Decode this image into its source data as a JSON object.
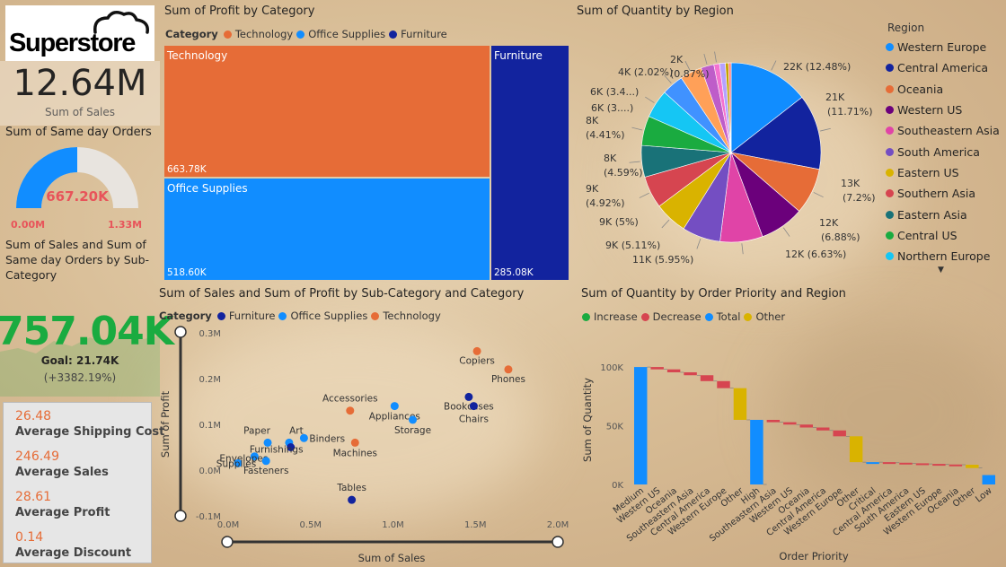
{
  "logo": {
    "text": "Superstore"
  },
  "kpi_sales": {
    "value": "12.64M",
    "label": "Sum of Sales"
  },
  "gauge": {
    "title": "Sum of Same day Orders",
    "value": "667.20K",
    "min": "0.00M",
    "max": "1.33M",
    "fraction": 0.5
  },
  "kpi_goal": {
    "title": "Sum of Sales and Sum of Same day Orders by Sub-Category",
    "value": "757.04K",
    "goal": "Goal: 21.74K",
    "delta": "(+3382.19%)"
  },
  "averages": [
    {
      "value": "26.48",
      "label": "Average Shipping Cost"
    },
    {
      "value": "246.49",
      "label": "Average Sales"
    },
    {
      "value": "28.61",
      "label": "Average Profit"
    },
    {
      "value": "0.14",
      "label": "Average Discount"
    }
  ],
  "colors": {
    "technology": "#E66C37",
    "office": "#118DFF",
    "furniture": "#12239E",
    "accent": "#E8545A"
  },
  "treemap": {
    "title": "Sum of Profit by Category",
    "legend_title": "Category",
    "legend": [
      "Technology",
      "Office Supplies",
      "Furniture"
    ],
    "tiles": [
      {
        "name": "Technology",
        "value": "663.78K"
      },
      {
        "name": "Office Supplies",
        "value": "518.60K"
      },
      {
        "name": "Furniture",
        "value": "285.08K"
      }
    ]
  },
  "pie": {
    "title": "Sum of Quantity by Region",
    "legend_title": "Region",
    "legend": [
      "Western Europe",
      "Central America",
      "Oceania",
      "Western US",
      "Southeastern Asia",
      "South America",
      "Eastern US",
      "Southern Asia",
      "Eastern Asia",
      "Central US",
      "Northern Europe"
    ],
    "labels": [
      {
        "l1": "22K (12.48%)",
        "l2": ""
      },
      {
        "l1": "21K",
        "l2": "(11.71%)"
      },
      {
        "l1": "13K",
        "l2": "(7.2%)"
      },
      {
        "l1": "12K",
        "l2": "(6.88%)"
      },
      {
        "l1": "12K (6.63%)",
        "l2": ""
      },
      {
        "l1": "11K (5.95%)",
        "l2": ""
      },
      {
        "l1": "9K (5.11%)",
        "l2": ""
      },
      {
        "l1": "9K (5%)",
        "l2": ""
      },
      {
        "l1": "9K",
        "l2": "(4.92%)"
      },
      {
        "l1": "8K",
        "l2": "(4.59%)"
      },
      {
        "l1": "8K",
        "l2": "(4.41%)"
      },
      {
        "l1": "6K (3....)",
        "l2": ""
      },
      {
        "l1": "6K (3.4...)",
        "l2": ""
      },
      {
        "l1": "4K (2.02%)",
        "l2": ""
      },
      {
        "l1": "2K",
        "l2": "(0.87%)"
      }
    ]
  },
  "scatter": {
    "title": "Sum of Sales and Sum of Profit by Sub-Category and Category",
    "legend_title": "Category",
    "legend": [
      "Furniture",
      "Office Supplies",
      "Technology"
    ],
    "xlabel": "Sum of Sales",
    "ylabel": "Sum of Profit",
    "xticks": [
      "0.0M",
      "0.5M",
      "1.0M",
      "1.5M",
      "2.0M"
    ],
    "yticks": [
      "0.3M",
      "0.2M",
      "0.1M",
      "0.0M",
      "-0.1M"
    ]
  },
  "waterfall": {
    "title": "Sum of Quantity by Order Priority and Region",
    "legend": [
      "Increase",
      "Decrease",
      "Total",
      "Other"
    ],
    "xlabel": "Order Priority",
    "ylabel": "Sum of Quantity",
    "yticks": [
      "100K",
      "50K",
      "0K"
    ],
    "categories": [
      "Medium",
      "Western US",
      "Oceania",
      "Southeastern Asia",
      "Central America",
      "Western Europe",
      "Other",
      "High",
      "Southeastern Asia",
      "Western US",
      "Oceania",
      "Central America",
      "Western Europe",
      "Other",
      "Critical",
      "Central America",
      "South America",
      "Eastern US",
      "Western Europe",
      "Oceania",
      "Other",
      "Low"
    ]
  },
  "chart_data": [
    {
      "type": "treemap",
      "title": "Sum of Profit by Category",
      "categories": [
        "Technology",
        "Office Supplies",
        "Furniture"
      ],
      "values": [
        663780,
        518600,
        285080
      ]
    },
    {
      "type": "pie",
      "title": "Sum of Quantity by Region",
      "categories": [
        "Western Europe",
        "Central America",
        "Oceania",
        "Western US",
        "Southeastern Asia",
        "South America",
        "Eastern US",
        "Southern Asia",
        "Eastern Asia",
        "Central US",
        "Northern Europe",
        "slice 12",
        "slice 13",
        "slice 14",
        "slice 15",
        "slice 16",
        "slice 17",
        "slice 18"
      ],
      "values": [
        12.48,
        11.71,
        7.2,
        6.88,
        6.63,
        5.95,
        5.11,
        5.0,
        4.92,
        4.59,
        4.41,
        3.4,
        3.4,
        2.02,
        0.87,
        0.9,
        0.5,
        0.4
      ],
      "colors": [
        "#118DFF",
        "#12239E",
        "#E66C37",
        "#6B007B",
        "#E044A7",
        "#744EC2",
        "#D9B300",
        "#D64550",
        "#197278",
        "#1AAB40",
        "#15C6F4",
        "#4092FF",
        "#FFA058",
        "#BE5DC9",
        "#F472D0",
        "#B5A1FF",
        "#C4A200",
        "#FF8080"
      ]
    },
    {
      "type": "scatter",
      "title": "Sum of Sales and Sum of Profit by Sub-Category and Category",
      "xlabel": "Sum of Sales",
      "ylabel": "Sum of Profit",
      "xlim": [
        0,
        2.0
      ],
      "ylim": [
        -0.1,
        0.3
      ],
      "points": [
        {
          "label": "Copiers",
          "cat": "Technology",
          "x": 1.51,
          "y": 0.26
        },
        {
          "label": "Phones",
          "cat": "Technology",
          "x": 1.7,
          "y": 0.22
        },
        {
          "label": "Accessories",
          "cat": "Technology",
          "x": 0.74,
          "y": 0.13
        },
        {
          "label": "Machines",
          "cat": "Technology",
          "x": 0.77,
          "y": 0.06
        },
        {
          "label": "Appliances",
          "cat": "Office Supplies",
          "x": 1.01,
          "y": 0.14
        },
        {
          "label": "Storage",
          "cat": "Office Supplies",
          "x": 1.12,
          "y": 0.11
        },
        {
          "label": "Binders",
          "cat": "Office Supplies",
          "x": 0.46,
          "y": 0.07
        },
        {
          "label": "Paper",
          "cat": "Office Supplies",
          "x": 0.24,
          "y": 0.06
        },
        {
          "label": "Art",
          "cat": "Office Supplies",
          "x": 0.37,
          "y": 0.06
        },
        {
          "label": "Envelopes",
          "cat": "Office Supplies",
          "x": 0.16,
          "y": 0.03
        },
        {
          "label": "Supplies",
          "cat": "Office Supplies",
          "x": 0.06,
          "y": 0.015
        },
        {
          "label": "Fasteners",
          "cat": "Office Supplies",
          "x": 0.23,
          "y": 0.02
        },
        {
          "label": "Furnishings",
          "cat": "Furniture",
          "x": 0.38,
          "y": 0.05
        },
        {
          "label": "Bookcases",
          "cat": "Furniture",
          "x": 1.46,
          "y": 0.16
        },
        {
          "label": "Chairs",
          "cat": "Furniture",
          "x": 1.49,
          "y": 0.14
        },
        {
          "label": "Tables",
          "cat": "Furniture",
          "x": 0.75,
          "y": -0.065
        }
      ]
    },
    {
      "type": "waterfall",
      "title": "Sum of Quantity by Order Priority and Region",
      "ylim": [
        0,
        110000
      ],
      "bars": [
        {
          "cat": "Medium",
          "kind": "total",
          "from": 0,
          "to": 100000
        },
        {
          "cat": "Western US",
          "kind": "decrease",
          "from": 100000,
          "to": 98000
        },
        {
          "cat": "Oceania",
          "kind": "decrease",
          "from": 98000,
          "to": 95500
        },
        {
          "cat": "Southeastern Asia",
          "kind": "decrease",
          "from": 95500,
          "to": 93000
        },
        {
          "cat": "Central America",
          "kind": "decrease",
          "from": 93000,
          "to": 88000
        },
        {
          "cat": "Western Europe",
          "kind": "decrease",
          "from": 88000,
          "to": 82000
        },
        {
          "cat": "Other",
          "kind": "other",
          "from": 82000,
          "to": 55000
        },
        {
          "cat": "High",
          "kind": "total",
          "from": 55000,
          "to": 0
        },
        {
          "cat": "Southeastern Asia",
          "kind": "decrease",
          "from": 55000,
          "to": 53000
        },
        {
          "cat": "Western US",
          "kind": "decrease",
          "from": 53000,
          "to": 51000
        },
        {
          "cat": "Oceania",
          "kind": "decrease",
          "from": 51000,
          "to": 48500
        },
        {
          "cat": "Central America",
          "kind": "decrease",
          "from": 48500,
          "to": 46000
        },
        {
          "cat": "Western Europe",
          "kind": "decrease",
          "from": 46000,
          "to": 41000
        },
        {
          "cat": "Other",
          "kind": "other",
          "from": 41000,
          "to": 19000
        },
        {
          "cat": "Critical",
          "kind": "total",
          "from": 19000,
          "to": 19000
        },
        {
          "cat": "Central America",
          "kind": "decrease",
          "from": 19000,
          "to": 18500
        },
        {
          "cat": "South America",
          "kind": "decrease",
          "from": 18500,
          "to": 18000
        },
        {
          "cat": "Eastern US",
          "kind": "decrease",
          "from": 18000,
          "to": 17500
        },
        {
          "cat": "Western Europe",
          "kind": "decrease",
          "from": 17500,
          "to": 17000
        },
        {
          "cat": "Oceania",
          "kind": "decrease",
          "from": 17000,
          "to": 16800
        },
        {
          "cat": "Other",
          "kind": "other",
          "from": 16800,
          "to": 14000
        },
        {
          "cat": "Low",
          "kind": "total",
          "from": 8000,
          "to": 0
        }
      ]
    }
  ]
}
